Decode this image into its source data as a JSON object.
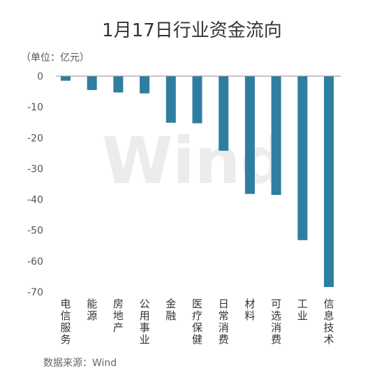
{
  "chart_data": {
    "type": "bar",
    "title": "1月17日行业资金流向",
    "unit_label": "（单位：亿元）",
    "source_label": "数据来源：Wind",
    "watermark": "Wind",
    "categories": [
      "电信服务",
      "能源",
      "房地产",
      "公用事业",
      "金融",
      "医疗保健",
      "日常消费",
      "材料",
      "可选消费",
      "工业",
      "信息技术"
    ],
    "values": [
      -1.5,
      -4.5,
      -5.3,
      -5.6,
      -15.1,
      -15.3,
      -24.2,
      -38.2,
      -38.5,
      -53.2,
      -68.4
    ],
    "y_ticks": [
      0,
      -10,
      -20,
      -30,
      -40,
      -50,
      -60,
      -70
    ],
    "ylim": [
      -70,
      0
    ],
    "bar_color": "#2e7ea1",
    "grid": false,
    "legend": "none"
  }
}
